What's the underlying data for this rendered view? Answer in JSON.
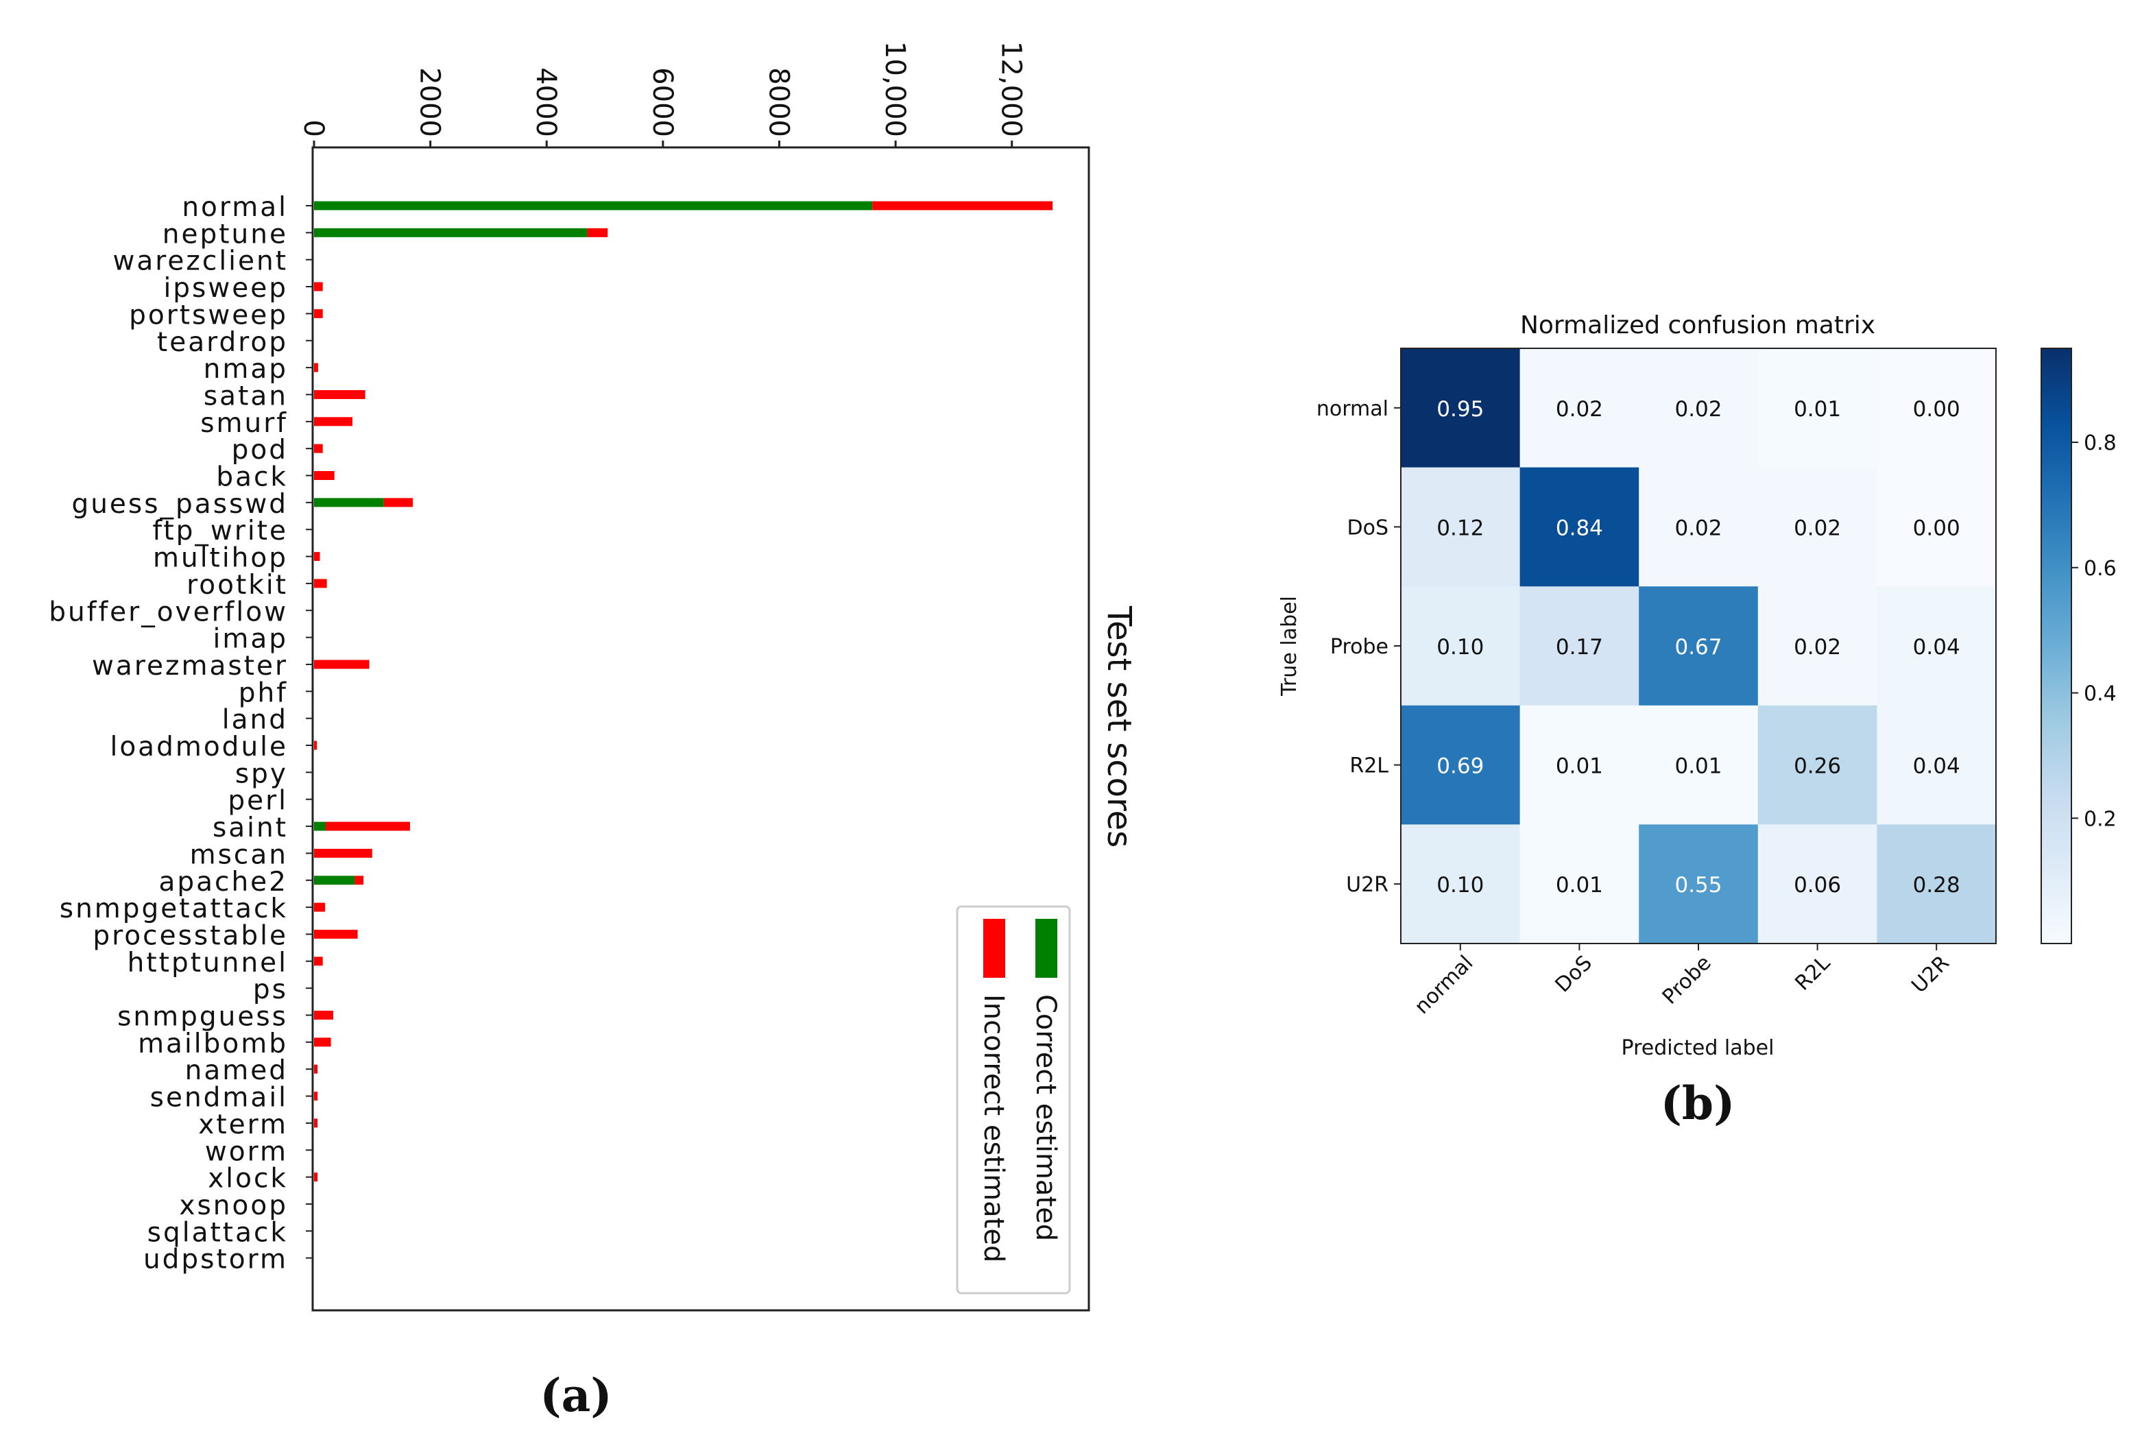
{
  "chart_data": [
    {
      "id": "a",
      "type": "bar",
      "orientation": "horizontal-stacked",
      "panel_label": "(a)",
      "title": "Test set scores",
      "xlabel": "",
      "ylabel": "",
      "xlim": [
        0,
        13300
      ],
      "x_tick_values": [
        0,
        2000,
        4000,
        6000,
        8000,
        10000,
        12000
      ],
      "x_tick_labels": [
        "0",
        "2000",
        "4000",
        "6000",
        "8000",
        "10,000",
        "12,000"
      ],
      "categories": [
        "normal",
        "neptune",
        "warezclient",
        "ipsweep",
        "portsweep",
        "teardrop",
        "nmap",
        "satan",
        "smurf",
        "pod",
        "back",
        "guess_passwd",
        "ftp_write",
        "multihop",
        "rootkit",
        "buffer_overflow",
        "imap",
        "warezmaster",
        "phf",
        "land",
        "loadmodule",
        "spy",
        "perl",
        "saint",
        "mscan",
        "apache2",
        "snmpgetattack",
        "processtable",
        "httptunnel",
        "ps",
        "snmpguess",
        "mailbomb",
        "named",
        "sendmail",
        "xterm",
        "worm",
        "xlock",
        "xsnoop",
        "sqlattack",
        "udpstorm"
      ],
      "series": [
        {
          "name": "Correct estimated",
          "color": "#008000",
          "values": [
            9600,
            4700,
            0,
            0,
            0,
            0,
            0,
            0,
            0,
            0,
            0,
            1200,
            0,
            0,
            0,
            0,
            0,
            0,
            0,
            0,
            0,
            0,
            0,
            200,
            0,
            700,
            0,
            0,
            0,
            0,
            0,
            0,
            0,
            0,
            0,
            0,
            0,
            0,
            0,
            0
          ]
        },
        {
          "name": "Incorrect estimated",
          "color": "#ff0000",
          "values": [
            3100,
            350,
            0,
            150,
            150,
            0,
            70,
            880,
            660,
            150,
            350,
            500,
            0,
            100,
            220,
            0,
            0,
            950,
            0,
            0,
            50,
            0,
            0,
            1450,
            1000,
            150,
            190,
            750,
            150,
            0,
            330,
            290,
            60,
            60,
            60,
            0,
            60,
            0,
            0,
            0
          ]
        }
      ],
      "legend_position": "bottom-right",
      "grid": false
    },
    {
      "id": "b",
      "type": "heatmap",
      "panel_label": "(b)",
      "title": "Normalized confusion matrix",
      "xlabel": "Predicted label",
      "ylabel": "True label",
      "x_categories": [
        "normal",
        "DoS",
        "Probe",
        "R2L",
        "U2R"
      ],
      "y_categories": [
        "normal",
        "DoS",
        "Probe",
        "R2L",
        "U2R"
      ],
      "values": [
        [
          0.95,
          0.02,
          0.02,
          0.01,
          0.0
        ],
        [
          0.12,
          0.84,
          0.02,
          0.02,
          0.0
        ],
        [
          0.1,
          0.17,
          0.67,
          0.02,
          0.04
        ],
        [
          0.69,
          0.01,
          0.01,
          0.26,
          0.04
        ],
        [
          0.1,
          0.01,
          0.55,
          0.06,
          0.28
        ]
      ],
      "cell_labels": [
        [
          "0.95",
          "0.02",
          "0.02",
          "0.01",
          "0.00"
        ],
        [
          "0.12",
          "0.84",
          "0.02",
          "0.02",
          "0.00"
        ],
        [
          "0.10",
          "0.17",
          "0.67",
          "0.02",
          "0.04"
        ],
        [
          "0.69",
          "0.01",
          "0.01",
          "0.26",
          "0.04"
        ],
        [
          "0.10",
          "0.01",
          "0.55",
          "0.06",
          "0.28"
        ]
      ],
      "colormap": "Blues",
      "colorbar_range": [
        0.0,
        0.95
      ],
      "colorbar_tick_values": [
        0.2,
        0.4,
        0.6,
        0.8
      ],
      "colorbar_tick_labels": [
        "0.2",
        "0.4",
        "0.6",
        "0.8"
      ]
    }
  ]
}
